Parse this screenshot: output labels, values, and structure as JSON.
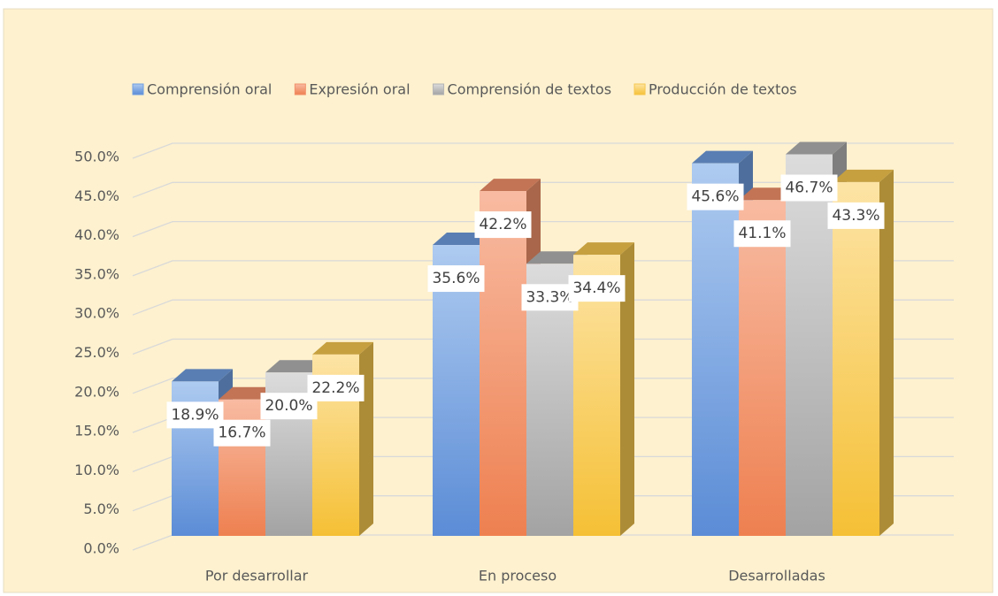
{
  "chart_data": {
    "type": "bar3d",
    "categories": [
      "Por desarrollar",
      "En proceso",
      "Desarrolladas"
    ],
    "series": [
      {
        "name": "Comprensión oral",
        "color": "#6f9ee0",
        "values": [
          18.9,
          35.6,
          45.6
        ],
        "value_labels": [
          "18.9%",
          "35.6%",
          "45.6%"
        ]
      },
      {
        "name": "Expresión oral",
        "color": "#f2916a",
        "values": [
          16.7,
          42.2,
          41.1
        ],
        "value_labels": [
          "16.7%",
          "42.2%",
          "41.1%"
        ]
      },
      {
        "name": "Comprensión de textos",
        "color": "#b4b4b4",
        "values": [
          20.0,
          33.3,
          46.7
        ],
        "value_labels": [
          "20.0%",
          "33.3%",
          "46.7%"
        ]
      },
      {
        "name": "Producción de textos",
        "color": "#f7c84f",
        "values": [
          22.2,
          34.4,
          43.3
        ],
        "value_labels": [
          "22.2%",
          "34.4%",
          "43.3%"
        ]
      }
    ],
    "ylim": [
      0,
      50
    ],
    "yticks": [
      {
        "value": 0,
        "label": "0.0%"
      },
      {
        "value": 5,
        "label": "5.0%"
      },
      {
        "value": 10,
        "label": "10.0%"
      },
      {
        "value": 15,
        "label": "15.0%"
      },
      {
        "value": 20,
        "label": "20.0%"
      },
      {
        "value": 25,
        "label": "25.0%"
      },
      {
        "value": 30,
        "label": "30.0%"
      },
      {
        "value": 35,
        "label": "35.0%"
      },
      {
        "value": 40,
        "label": "40.0%"
      },
      {
        "value": 45,
        "label": "45.0%"
      },
      {
        "value": 50,
        "label": "50.0%"
      }
    ],
    "grid": true,
    "legend": "top"
  }
}
